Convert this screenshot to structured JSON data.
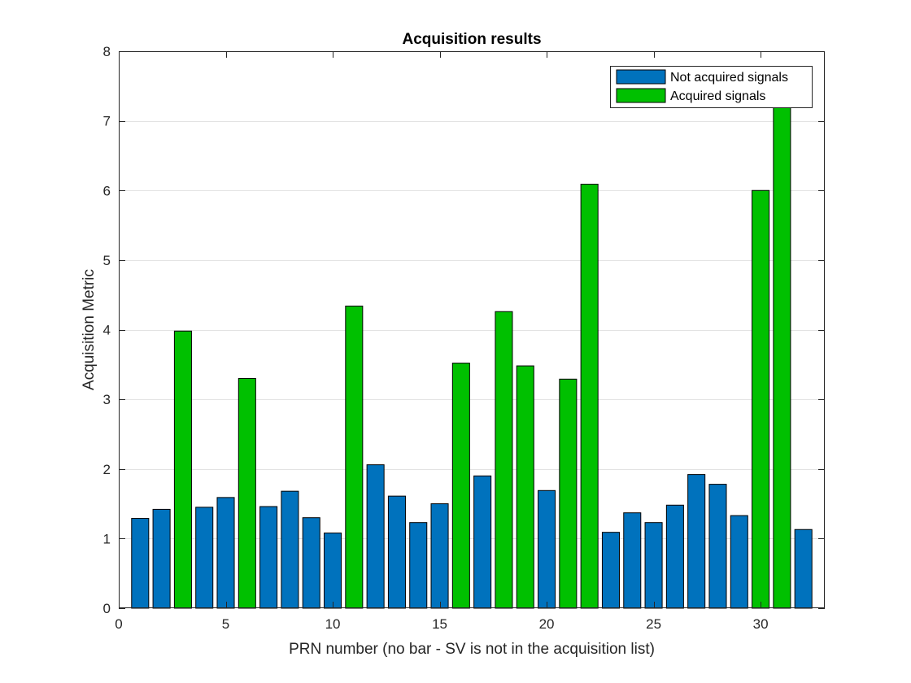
{
  "chart_data": {
    "type": "bar",
    "title": "Acquisition results",
    "xlabel": "PRN number (no bar - SV is not in the acquisition list)",
    "ylabel": "Acquisition Metric",
    "xlim": [
      0,
      33
    ],
    "ylim": [
      0,
      8
    ],
    "xticks": [
      0,
      5,
      10,
      15,
      20,
      25,
      30
    ],
    "yticks": [
      0,
      1,
      2,
      3,
      4,
      5,
      6,
      7,
      8
    ],
    "grid": "y-major",
    "legend_position": "top-right",
    "series": [
      {
        "name": "Not acquired signals",
        "color": "#0072bd",
        "x": [
          1,
          2,
          4,
          5,
          7,
          8,
          9,
          10,
          12,
          13,
          14,
          15,
          17,
          20,
          23,
          24,
          25,
          26,
          27,
          28,
          29,
          32
        ],
        "values": [
          1.29,
          1.42,
          1.45,
          1.59,
          1.46,
          1.68,
          1.3,
          1.08,
          2.06,
          1.61,
          1.23,
          1.5,
          1.9,
          1.69,
          1.09,
          1.37,
          1.23,
          1.48,
          1.92,
          1.78,
          1.33,
          1.13
        ]
      },
      {
        "name": "Acquired signals",
        "color": "#00c000",
        "x": [
          3,
          6,
          11,
          16,
          18,
          19,
          21,
          22,
          30,
          31
        ],
        "values": [
          3.98,
          3.3,
          4.34,
          3.52,
          4.26,
          3.48,
          3.29,
          6.09,
          6.0,
          7.25
        ]
      }
    ]
  }
}
